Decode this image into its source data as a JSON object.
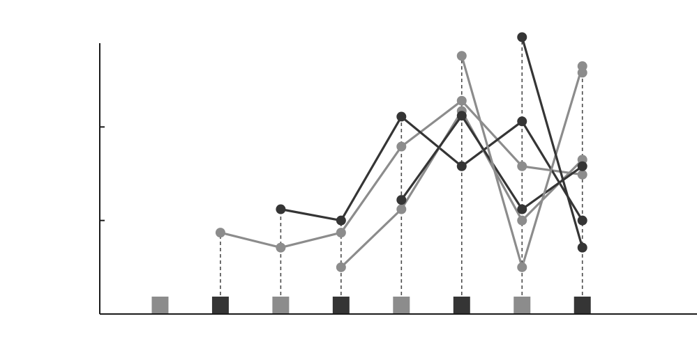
{
  "chart_data": {
    "type": "line",
    "title": "",
    "xlabel": "",
    "ylabel": "",
    "x": [
      1,
      2,
      3,
      4,
      5,
      6,
      7,
      8
    ],
    "xlim": [
      0.0,
      9.9
    ],
    "ylim": [
      0,
      3
    ],
    "yticks": [
      0,
      1,
      2,
      3
    ],
    "ytick_labels": [
      "",
      "",
      "",
      ""
    ],
    "xtick_labels": [
      "",
      "",
      "",
      "",
      "",
      "",
      "",
      ""
    ],
    "grid": false,
    "legend": "none",
    "colors": {
      "light": "#8c8c8c",
      "dark": "#353535",
      "dashed": "#4a4a4a",
      "axis": "#1a1a1a"
    },
    "series": [
      {
        "color": "light",
        "points": [
          [
            2,
            0.87
          ],
          [
            3,
            0.71
          ],
          [
            4,
            0.87
          ],
          [
            5,
            1.79
          ],
          [
            6,
            2.28
          ],
          [
            7,
            1.58
          ],
          [
            8,
            1.49
          ]
        ]
      },
      {
        "color": "dark",
        "points": [
          [
            3,
            1.12
          ],
          [
            4,
            1.0
          ],
          [
            5,
            2.11
          ],
          [
            6,
            1.58
          ],
          [
            7,
            2.06
          ],
          [
            8,
            1.0
          ]
        ]
      },
      {
        "color": "light",
        "points": [
          [
            4,
            0.5
          ],
          [
            5,
            1.12
          ],
          [
            6,
            2.17
          ],
          [
            7,
            1.0
          ],
          [
            8,
            1.65
          ]
        ]
      },
      {
        "color": "dark",
        "points": [
          [
            5,
            1.22
          ],
          [
            6,
            2.12
          ],
          [
            7,
            1.12
          ],
          [
            8,
            1.58
          ]
        ]
      },
      {
        "color": "light",
        "points": [
          [
            6,
            2.76
          ],
          [
            7,
            0.5
          ],
          [
            8,
            2.65
          ]
        ]
      },
      {
        "color": "dark",
        "points": [
          [
            7,
            2.96
          ],
          [
            8,
            0.71
          ]
        ]
      },
      {
        "color": "light",
        "points": [
          [
            8,
            2.58
          ]
        ]
      }
    ],
    "stems": [
      {
        "x": 2,
        "top": 0.87
      },
      {
        "x": 3,
        "top": 1.12
      },
      {
        "x": 4,
        "top": 1.0
      },
      {
        "x": 5,
        "top": 2.11
      },
      {
        "x": 6,
        "top": 2.76
      },
      {
        "x": 7,
        "top": 2.96
      },
      {
        "x": 8,
        "top": 2.65
      }
    ],
    "baseline_markers": [
      {
        "x": 1,
        "color": "light"
      },
      {
        "x": 2,
        "color": "dark"
      },
      {
        "x": 3,
        "color": "light"
      },
      {
        "x": 4,
        "color": "dark"
      },
      {
        "x": 5,
        "color": "light"
      },
      {
        "x": 6,
        "color": "dark"
      },
      {
        "x": 7,
        "color": "light"
      },
      {
        "x": 8,
        "color": "dark"
      }
    ]
  }
}
